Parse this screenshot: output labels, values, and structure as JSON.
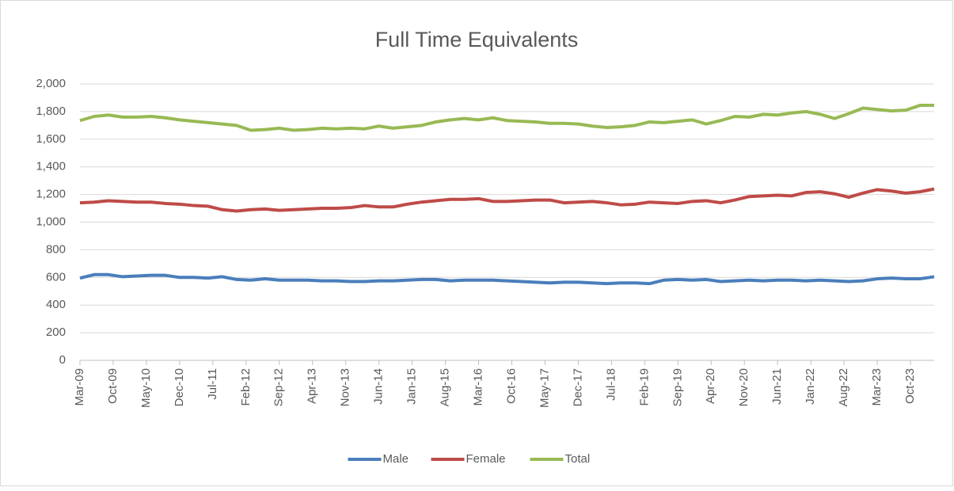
{
  "chart_data": {
    "type": "line",
    "title": "Full Time Equivalents",
    "x": [
      "2009-03",
      "2009-06",
      "2009-09",
      "2009-12",
      "2010-03",
      "2010-06",
      "2010-09",
      "2010-12",
      "2011-03",
      "2011-06",
      "2011-09",
      "2011-12",
      "2012-03",
      "2012-06",
      "2012-09",
      "2012-12",
      "2013-03",
      "2013-06",
      "2013-09",
      "2013-12",
      "2014-03",
      "2014-06",
      "2014-09",
      "2014-12",
      "2015-03",
      "2015-06",
      "2015-09",
      "2015-12",
      "2016-03",
      "2016-06",
      "2016-09",
      "2016-12",
      "2017-03",
      "2017-06",
      "2017-09",
      "2017-12",
      "2018-03",
      "2018-06",
      "2018-09",
      "2018-12",
      "2019-03",
      "2019-06",
      "2019-09",
      "2019-12",
      "2020-03",
      "2020-06",
      "2020-09",
      "2020-12",
      "2021-03",
      "2021-06",
      "2021-09",
      "2021-12",
      "2022-03",
      "2022-06",
      "2022-09",
      "2022-12",
      "2023-03",
      "2023-06",
      "2023-09",
      "2023-12",
      "2024-03"
    ],
    "series": [
      {
        "name": "Male",
        "color": "#4a7ebb",
        "values": [
          595,
          620,
          620,
          605,
          610,
          615,
          615,
          600,
          600,
          595,
          605,
          585,
          580,
          590,
          580,
          580,
          580,
          575,
          575,
          570,
          570,
          575,
          575,
          580,
          585,
          585,
          575,
          580,
          580,
          580,
          575,
          570,
          565,
          560,
          565,
          565,
          560,
          555,
          560,
          560,
          555,
          580,
          585,
          580,
          585,
          570,
          575,
          580,
          575,
          580,
          580,
          575,
          580,
          575,
          570,
          575,
          590,
          595,
          590,
          590,
          605
        ]
      },
      {
        "name": "Female",
        "color": "#be4b48",
        "values": [
          1140,
          1145,
          1155,
          1150,
          1145,
          1145,
          1135,
          1130,
          1120,
          1115,
          1090,
          1080,
          1090,
          1095,
          1085,
          1090,
          1095,
          1100,
          1100,
          1105,
          1120,
          1110,
          1110,
          1130,
          1145,
          1155,
          1165,
          1165,
          1170,
          1150,
          1150,
          1155,
          1160,
          1160,
          1140,
          1145,
          1150,
          1140,
          1125,
          1130,
          1145,
          1140,
          1135,
          1150,
          1155,
          1140,
          1160,
          1185,
          1190,
          1195,
          1190,
          1215,
          1220,
          1205,
          1180,
          1210,
          1235,
          1225,
          1210,
          1220,
          1240
        ]
      },
      {
        "name": "Total",
        "color": "#98b954",
        "values": [
          1735,
          1765,
          1775,
          1760,
          1760,
          1765,
          1755,
          1740,
          1730,
          1720,
          1710,
          1700,
          1665,
          1670,
          1680,
          1665,
          1670,
          1680,
          1675,
          1680,
          1675,
          1695,
          1680,
          1690,
          1700,
          1725,
          1740,
          1750,
          1740,
          1755,
          1735,
          1730,
          1725,
          1715,
          1715,
          1710,
          1695,
          1685,
          1690,
          1700,
          1725,
          1720,
          1730,
          1740,
          1710,
          1735,
          1765,
          1760,
          1780,
          1775,
          1790,
          1800,
          1780,
          1750,
          1785,
          1825,
          1815,
          1805,
          1810,
          1845,
          1845
        ]
      }
    ],
    "xlim": [
      "2009-03",
      "2024-03"
    ],
    "xticks": [
      {
        "value": "2009-03",
        "label": "Mar-09"
      },
      {
        "value": "2009-10",
        "label": "Oct-09"
      },
      {
        "value": "2010-05",
        "label": "May-10"
      },
      {
        "value": "2010-12",
        "label": "Dec-10"
      },
      {
        "value": "2011-07",
        "label": "Jul-11"
      },
      {
        "value": "2012-02",
        "label": "Feb-12"
      },
      {
        "value": "2012-09",
        "label": "Sep-12"
      },
      {
        "value": "2013-04",
        "label": "Apr-13"
      },
      {
        "value": "2013-11",
        "label": "Nov-13"
      },
      {
        "value": "2014-06",
        "label": "Jun-14"
      },
      {
        "value": "2015-01",
        "label": "Jan-15"
      },
      {
        "value": "2015-08",
        "label": "Aug-15"
      },
      {
        "value": "2016-03",
        "label": "Mar-16"
      },
      {
        "value": "2016-10",
        "label": "Oct-16"
      },
      {
        "value": "2017-05",
        "label": "May-17"
      },
      {
        "value": "2017-12",
        "label": "Dec-17"
      },
      {
        "value": "2018-07",
        "label": "Jul-18"
      },
      {
        "value": "2019-02",
        "label": "Feb-19"
      },
      {
        "value": "2019-09",
        "label": "Sep-19"
      },
      {
        "value": "2020-04",
        "label": "Apr-20"
      },
      {
        "value": "2020-11",
        "label": "Nov-20"
      },
      {
        "value": "2021-06",
        "label": "Jun-21"
      },
      {
        "value": "2022-01",
        "label": "Jan-22"
      },
      {
        "value": "2022-08",
        "label": "Aug-22"
      },
      {
        "value": "2023-03",
        "label": "Mar-23"
      },
      {
        "value": "2023-10",
        "label": "Oct-23"
      }
    ],
    "ylim": [
      0,
      2000
    ],
    "yticks": [
      0,
      200,
      400,
      600,
      800,
      {
        "value": 1000,
        "label": "1,000"
      },
      {
        "value": 1200,
        "label": "1,200"
      },
      {
        "value": 1400,
        "label": "1,400"
      },
      {
        "value": 1600,
        "label": "1,600"
      },
      {
        "value": 1800,
        "label": "1,800"
      },
      {
        "value": 2000,
        "label": "2,000"
      }
    ],
    "grid": true,
    "legend": "bottom"
  }
}
